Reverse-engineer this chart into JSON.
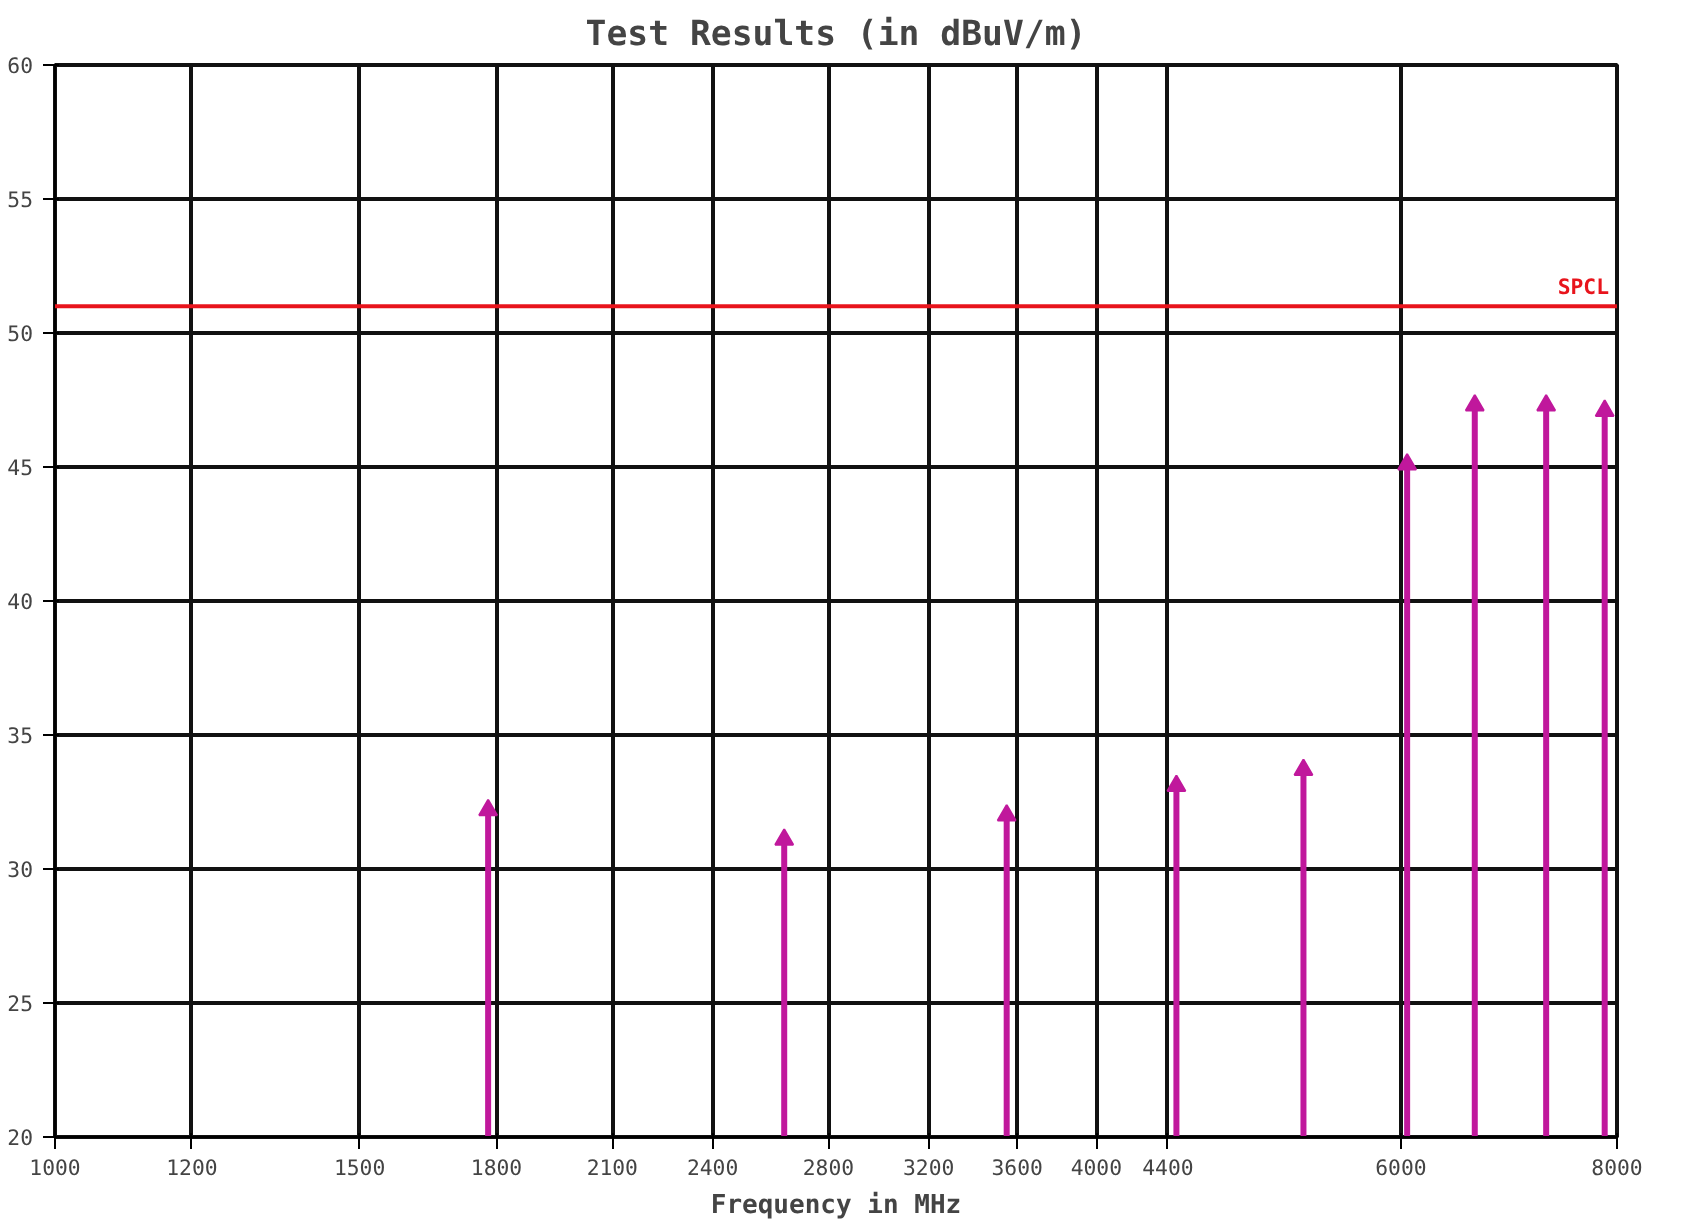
{
  "chart_data": {
    "type": "lollipop",
    "title": "Test Results (in dBuV/m)",
    "xlabel": "Frequency in MHz",
    "log": "x",
    "x": [
      1780,
      2640,
      3550,
      4450,
      5270,
      6050,
      6620,
      7280,
      7870
    ],
    "series": [
      {
        "color": "#c0189c",
        "values": [
          32.2,
          31.1,
          32.0,
          33.1,
          33.7,
          45.1,
          47.3,
          47.3,
          47.1
        ]
      }
    ],
    "marker": "triangle",
    "grid": true,
    "xlim": [
      1000,
      8000
    ],
    "xticks": [
      1000,
      1200,
      1500,
      1800,
      2100,
      2400,
      2800,
      3200,
      3600,
      4000,
      4400,
      6000,
      8000
    ],
    "ylim": [
      20,
      60
    ],
    "yticks": [
      20,
      25,
      30,
      35,
      40,
      45,
      50,
      55,
      60
    ],
    "ref_lines": [
      {
        "axis": "y",
        "value": 51,
        "label": "SPCL",
        "color": "#e8141c"
      }
    ]
  }
}
